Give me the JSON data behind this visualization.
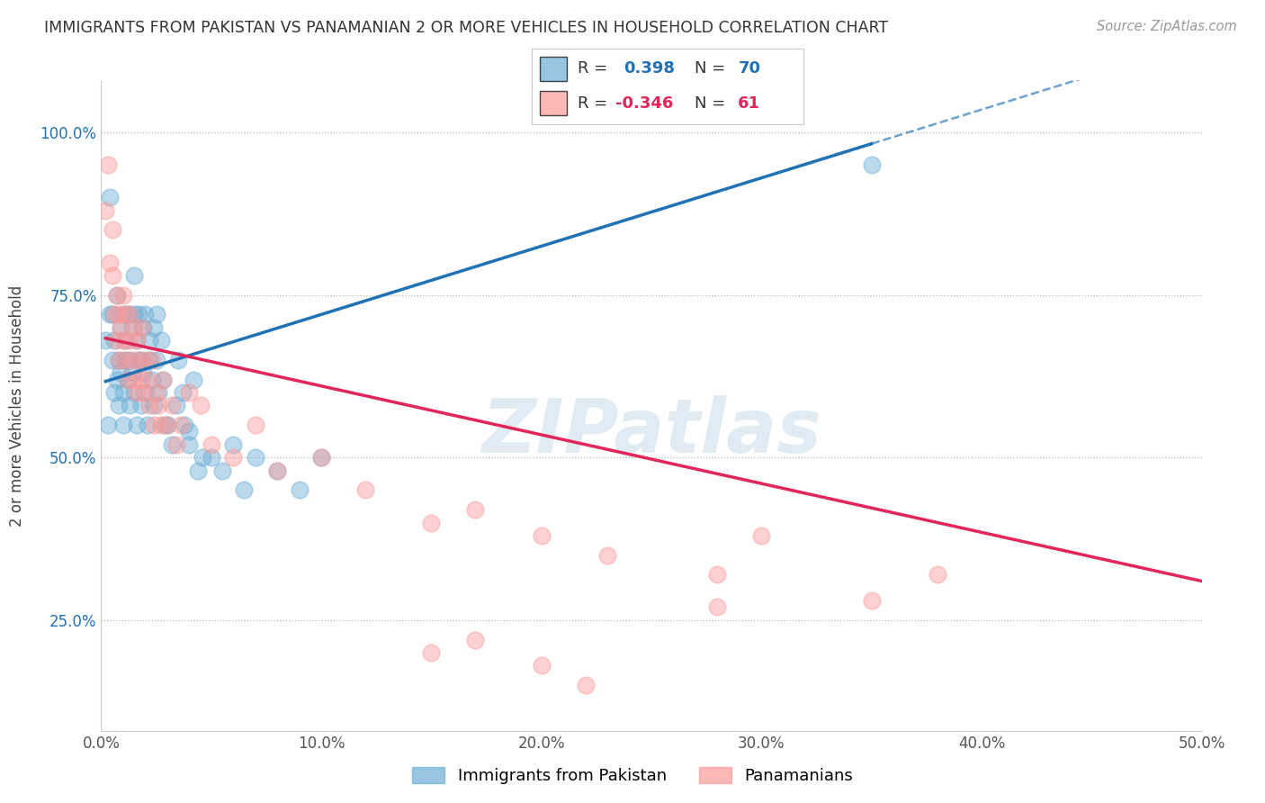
{
  "title": "IMMIGRANTS FROM PAKISTAN VS PANAMANIAN 2 OR MORE VEHICLES IN HOUSEHOLD CORRELATION CHART",
  "source": "Source: ZipAtlas.com",
  "ylabel": "2 or more Vehicles in Household",
  "xlim": [
    0.0,
    0.5
  ],
  "ylim": [
    0.08,
    1.08
  ],
  "xticks": [
    0.0,
    0.1,
    0.2,
    0.3,
    0.4,
    0.5
  ],
  "xticklabels": [
    "0.0%",
    "10.0%",
    "20.0%",
    "30.0%",
    "40.0%",
    "50.0%"
  ],
  "yticks": [
    0.25,
    0.5,
    0.75,
    1.0
  ],
  "yticklabels": [
    "25.0%",
    "50.0%",
    "75.0%",
    "100.0%"
  ],
  "blue_color": "#6BAED6",
  "pink_color": "#FB9A99",
  "blue_line_color": "#2171B5",
  "pink_line_color": "#E3265A",
  "legend_r_blue": "0.398",
  "legend_n_blue": "70",
  "legend_r_pink": "-0.346",
  "legend_n_pink": "61",
  "watermark": "ZIPatlas",
  "blue_scatter_x": [
    0.002,
    0.003,
    0.004,
    0.004,
    0.005,
    0.005,
    0.006,
    0.006,
    0.007,
    0.007,
    0.008,
    0.008,
    0.009,
    0.009,
    0.01,
    0.01,
    0.01,
    0.011,
    0.011,
    0.012,
    0.012,
    0.013,
    0.013,
    0.014,
    0.014,
    0.015,
    0.015,
    0.015,
    0.016,
    0.016,
    0.017,
    0.017,
    0.018,
    0.018,
    0.019,
    0.019,
    0.02,
    0.02,
    0.021,
    0.022,
    0.022,
    0.023,
    0.024,
    0.024,
    0.025,
    0.025,
    0.026,
    0.027,
    0.028,
    0.029,
    0.03,
    0.032,
    0.034,
    0.035,
    0.037,
    0.038,
    0.04,
    0.042,
    0.044,
    0.046,
    0.05,
    0.055,
    0.06,
    0.065,
    0.07,
    0.08,
    0.09,
    0.1,
    0.04,
    0.35
  ],
  "blue_scatter_y": [
    0.68,
    0.55,
    0.72,
    0.9,
    0.65,
    0.72,
    0.6,
    0.68,
    0.62,
    0.75,
    0.58,
    0.65,
    0.7,
    0.63,
    0.6,
    0.72,
    0.55,
    0.68,
    0.65,
    0.62,
    0.72,
    0.58,
    0.65,
    0.7,
    0.63,
    0.6,
    0.72,
    0.78,
    0.55,
    0.68,
    0.65,
    0.72,
    0.58,
    0.65,
    0.7,
    0.63,
    0.6,
    0.72,
    0.55,
    0.68,
    0.65,
    0.62,
    0.7,
    0.58,
    0.65,
    0.72,
    0.6,
    0.68,
    0.62,
    0.55,
    0.55,
    0.52,
    0.58,
    0.65,
    0.6,
    0.55,
    0.52,
    0.62,
    0.48,
    0.5,
    0.5,
    0.48,
    0.52,
    0.45,
    0.5,
    0.48,
    0.45,
    0.5,
    0.54,
    0.95
  ],
  "pink_scatter_x": [
    0.002,
    0.003,
    0.004,
    0.005,
    0.005,
    0.006,
    0.007,
    0.007,
    0.008,
    0.008,
    0.009,
    0.01,
    0.01,
    0.011,
    0.011,
    0.012,
    0.013,
    0.013,
    0.014,
    0.015,
    0.015,
    0.016,
    0.016,
    0.017,
    0.018,
    0.018,
    0.019,
    0.02,
    0.021,
    0.022,
    0.023,
    0.024,
    0.025,
    0.026,
    0.027,
    0.028,
    0.03,
    0.032,
    0.034,
    0.036,
    0.04,
    0.045,
    0.05,
    0.06,
    0.07,
    0.08,
    0.1,
    0.12,
    0.15,
    0.17,
    0.2,
    0.23,
    0.28,
    0.3,
    0.35,
    0.38,
    0.15,
    0.2,
    0.22,
    0.28,
    0.17
  ],
  "pink_scatter_y": [
    0.88,
    0.95,
    0.8,
    0.78,
    0.85,
    0.72,
    0.68,
    0.75,
    0.65,
    0.72,
    0.7,
    0.68,
    0.75,
    0.65,
    0.72,
    0.62,
    0.68,
    0.72,
    0.65,
    0.62,
    0.7,
    0.6,
    0.68,
    0.65,
    0.62,
    0.7,
    0.6,
    0.65,
    0.62,
    0.58,
    0.65,
    0.55,
    0.6,
    0.58,
    0.55,
    0.62,
    0.55,
    0.58,
    0.52,
    0.55,
    0.6,
    0.58,
    0.52,
    0.5,
    0.55,
    0.48,
    0.5,
    0.45,
    0.4,
    0.42,
    0.38,
    0.35,
    0.32,
    0.38,
    0.28,
    0.32,
    0.2,
    0.18,
    0.15,
    0.27,
    0.22
  ]
}
